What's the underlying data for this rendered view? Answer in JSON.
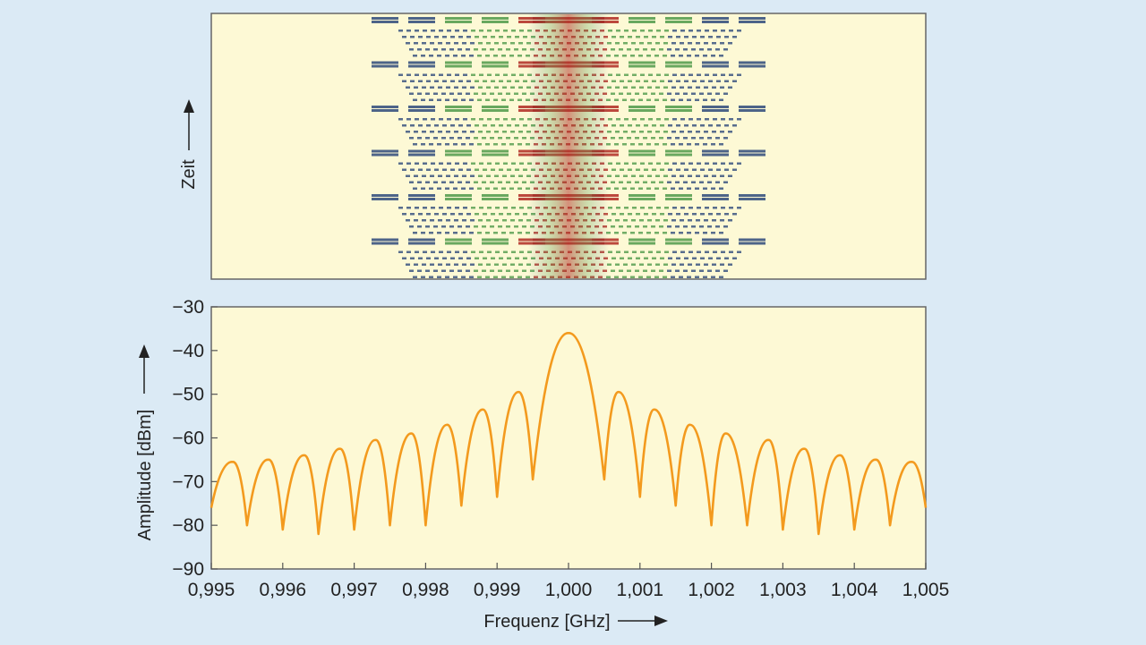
{
  "chart_data": [
    {
      "type": "heatmap",
      "ylabel": "Zeit",
      "rows": 6,
      "time_axis_arrow": "up",
      "x_extent_ghz": [
        0.995,
        1.005
      ],
      "occupied_band_ghz": [
        0.9975,
        1.0025
      ],
      "colors": {
        "background": "#fdf9d5",
        "peak": "#b02a22",
        "mid": "#4f9a4a",
        "low": "#2e4a7a"
      }
    },
    {
      "type": "line",
      "xlabel": "Frequenz [GHz]",
      "ylabel": "Amplitude [dBm]",
      "xlim": [
        0.995,
        1.005
      ],
      "ylim": [
        -90,
        -30
      ],
      "x_ticks": [
        0.995,
        0.996,
        0.997,
        0.998,
        0.999,
        1.0,
        1.001,
        1.002,
        1.003,
        1.004,
        1.005
      ],
      "x_tick_labels": [
        "0,995",
        "0,996",
        "0,997",
        "0,998",
        "0,999",
        "1,000",
        "1,001",
        "1,002",
        "1,003",
        "1,004",
        "1,005"
      ],
      "y_ticks": [
        -30,
        -40,
        -50,
        -60,
        -70,
        -80,
        -90
      ],
      "y_tick_labels": [
        "−30",
        "−40",
        "−50",
        "−60",
        "−70",
        "−80",
        "−90"
      ],
      "line_color": "#f39a1e",
      "background": "#fdf9d5",
      "x": [
        0.995,
        0.9953,
        0.9955,
        0.9958,
        0.996,
        0.9963,
        0.9965,
        0.9968,
        0.997,
        0.9973,
        0.9975,
        0.9978,
        0.998,
        0.9983,
        0.9985,
        0.9988,
        0.999,
        0.9993,
        0.9995,
        1.0,
        1.0005,
        1.0007,
        1.001,
        1.0012,
        1.0015,
        1.0017,
        1.002,
        1.0022,
        1.0025,
        1.0028,
        1.003,
        1.0033,
        1.0035,
        1.0038,
        1.004,
        1.0043,
        1.0045,
        1.0048,
        1.005
      ],
      "y": [
        -76,
        -65.5,
        -80,
        -65,
        -81,
        -64,
        -82,
        -62.5,
        -81,
        -60.5,
        -80,
        -59,
        -80,
        -57,
        -75.5,
        -53.5,
        -73.5,
        -49.5,
        -69.5,
        -36,
        -69.5,
        -49.5,
        -73.5,
        -53.5,
        -75.5,
        -57,
        -80,
        -59,
        -80,
        -60.5,
        -81,
        -62.5,
        -82,
        -64,
        -81,
        -65,
        -80,
        -65.5,
        -76
      ]
    }
  ]
}
